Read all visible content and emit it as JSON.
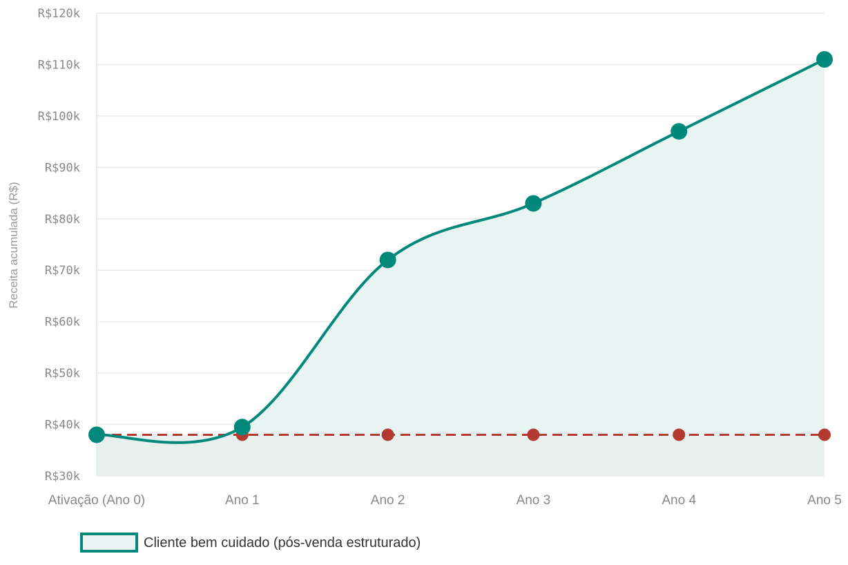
{
  "chart_data": {
    "type": "line",
    "categories": [
      "Ativação (Ano 0)",
      "Ano 1",
      "Ano 2",
      "Ano 3",
      "Ano 4",
      "Ano 5"
    ],
    "series": [
      {
        "name": "Cliente bem cuidado (pós-venda estruturado)",
        "values": [
          38000,
          39500,
          72000,
          83000,
          97000,
          111000
        ],
        "color": "#00897B",
        "fill": "#E8F4F2",
        "style": "solid"
      },
      {
        "values": [
          38000,
          38000,
          38000,
          38000,
          38000,
          38000
        ],
        "color": "#B23A30",
        "fill": "#E8EFEC",
        "style": "dashed"
      }
    ],
    "ylabel": "Receita acumulada (R$)",
    "ylim": [
      30000,
      120000
    ],
    "yticks": [
      30000,
      40000,
      50000,
      60000,
      70000,
      80000,
      90000,
      100000,
      110000,
      120000
    ],
    "ytick_labels": [
      "R$30k",
      "R$40k",
      "R$50k",
      "R$60k",
      "R$70k",
      "R$80k",
      "R$90k",
      "R$100k",
      "R$110k",
      "R$120k"
    ],
    "grid": true,
    "legend_position": "bottom-left"
  },
  "legend": {
    "label": "Cliente bem cuidado (pós-venda estruturado)"
  }
}
